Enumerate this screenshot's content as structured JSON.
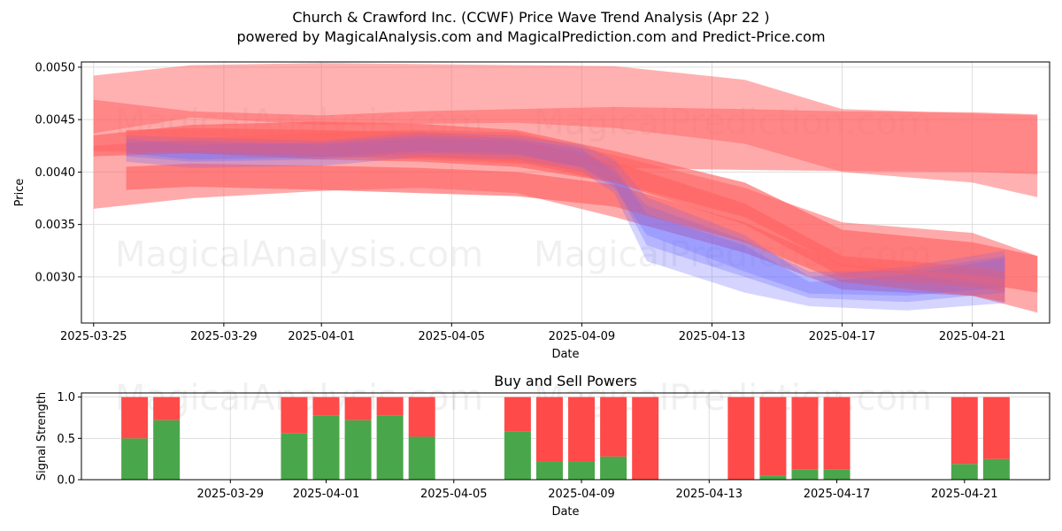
{
  "header": {
    "title": "Church & Crawford Inc. (CCWF) Price Wave Trend Analysis (Apr 22 )",
    "subtitle": "powered by MagicalAnalysis.com and MagicalPrediction.com and Predict-Price.com"
  },
  "watermarks": [
    "MagicalAnalysis.com",
    "MagicalPrediction.com"
  ],
  "colors": {
    "red_band": "#ff6464",
    "blue_band": "#6464ff",
    "buy": "#4aa64a",
    "sell": "#ff4a4a",
    "grid": "#dddddd"
  },
  "chart_data": [
    {
      "type": "area",
      "xlabel": "Date",
      "ylabel": "Price",
      "ylim": [
        0.00256,
        0.00505
      ],
      "xlim": [
        "2025-03-24T15:00",
        "2025-04-23T09:00"
      ],
      "y_ticks": [
        "0.0030",
        "0.0035",
        "0.0040",
        "0.0045",
        "0.0050"
      ],
      "x_ticks": [
        "2025-03-25",
        "2025-03-29",
        "2025-04-01",
        "2025-04-05",
        "2025-04-09",
        "2025-04-13",
        "2025-04-17",
        "2025-04-21"
      ],
      "grid": true,
      "red_bands": [
        {
          "x": [
            "2025-03-25",
            "2025-03-28",
            "2025-04-01",
            "2025-04-04",
            "2025-04-07",
            "2025-04-10",
            "2025-04-14",
            "2025-04-17",
            "2025-04-21",
            "2025-04-23"
          ],
          "upper": [
            0.00492,
            0.00502,
            0.00504,
            0.00503,
            0.00502,
            0.00501,
            0.00488,
            0.0046,
            0.00456,
            0.00454
          ],
          "lower": [
            0.00437,
            0.00452,
            0.00445,
            0.00446,
            0.00447,
            0.00442,
            0.00427,
            0.004,
            0.0039,
            0.00376
          ]
        },
        {
          "x": [
            "2025-03-25",
            "2025-03-28",
            "2025-04-01",
            "2025-04-04",
            "2025-04-07",
            "2025-04-10",
            "2025-04-14",
            "2025-04-17",
            "2025-04-21",
            "2025-04-23"
          ],
          "upper": [
            0.00469,
            0.00458,
            0.00454,
            0.00458,
            0.0046,
            0.00462,
            0.0046,
            0.00458,
            0.00457,
            0.00455
          ],
          "lower": [
            0.0042,
            0.00418,
            0.00415,
            0.00412,
            0.00408,
            0.00404,
            0.00402,
            0.00401,
            0.004,
            0.00398
          ]
        },
        {
          "x": [
            "2025-03-25",
            "2025-03-28",
            "2025-04-01",
            "2025-04-04",
            "2025-04-07",
            "2025-04-10",
            "2025-04-14",
            "2025-04-17",
            "2025-04-21",
            "2025-04-23"
          ],
          "upper": [
            0.00425,
            0.00432,
            0.00438,
            0.0044,
            0.00438,
            0.00416,
            0.00385,
            0.00352,
            0.00342,
            0.0032
          ],
          "lower": [
            0.00365,
            0.00375,
            0.00382,
            0.00385,
            0.0038,
            0.00357,
            0.00323,
            0.00288,
            0.00282,
            0.00266
          ]
        },
        {
          "x": [
            "2025-03-25",
            "2025-03-28",
            "2025-04-01",
            "2025-04-04",
            "2025-04-07",
            "2025-04-10",
            "2025-04-14",
            "2025-04-17",
            "2025-04-21",
            "2025-04-23"
          ],
          "upper": [
            0.00435,
            0.00445,
            0.00448,
            0.00446,
            0.0044,
            0.0042,
            0.0039,
            0.00345,
            0.00333,
            0.0032
          ],
          "lower": [
            0.00415,
            0.00418,
            0.00412,
            0.0041,
            0.00405,
            0.0039,
            0.00357,
            0.0031,
            0.00295,
            0.00285
          ]
        },
        {
          "x": [
            "2025-03-26",
            "2025-03-28",
            "2025-04-01",
            "2025-04-04",
            "2025-04-07",
            "2025-04-10",
            "2025-04-14",
            "2025-04-17",
            "2025-04-21",
            "2025-04-22"
          ],
          "upper": [
            0.00405,
            0.00408,
            0.00406,
            0.00404,
            0.004,
            0.00388,
            0.00352,
            0.00312,
            0.00302,
            0.00298
          ],
          "lower": [
            0.00383,
            0.00386,
            0.00383,
            0.0038,
            0.00377,
            0.00367,
            0.00333,
            0.00295,
            0.00282,
            0.00276
          ]
        },
        {
          "x": [
            "2025-03-26",
            "2025-03-28",
            "2025-04-01",
            "2025-04-04",
            "2025-04-07",
            "2025-04-10",
            "2025-04-14",
            "2025-04-17",
            "2025-04-21",
            "2025-04-22"
          ],
          "upper": [
            0.0044,
            0.00442,
            0.0044,
            0.00438,
            0.00432,
            0.0041,
            0.0037,
            0.0032,
            0.0031,
            0.00305
          ],
          "lower": [
            0.00418,
            0.0042,
            0.00416,
            0.00414,
            0.0041,
            0.0039,
            0.0035,
            0.003,
            0.0029,
            0.00286
          ]
        }
      ],
      "blue_bands": [
        {
          "x": [
            "2025-03-26",
            "2025-03-28",
            "2025-04-01",
            "2025-04-04",
            "2025-04-07",
            "2025-04-09",
            "2025-04-10",
            "2025-04-11",
            "2025-04-14",
            "2025-04-16",
            "2025-04-19",
            "2025-04-22"
          ],
          "upper": [
            0.00435,
            0.00433,
            0.0043,
            0.00438,
            0.00435,
            0.00426,
            0.00412,
            0.00376,
            0.0034,
            0.003,
            0.0031,
            0.00325
          ],
          "lower": [
            0.0041,
            0.00404,
            0.00406,
            0.00414,
            0.00412,
            0.004,
            0.0038,
            0.00315,
            0.00285,
            0.00272,
            0.00268,
            0.00275
          ]
        },
        {
          "x": [
            "2025-03-26",
            "2025-03-28",
            "2025-04-01",
            "2025-04-04",
            "2025-04-07",
            "2025-04-09",
            "2025-04-10",
            "2025-04-11",
            "2025-04-14",
            "2025-04-16",
            "2025-04-19",
            "2025-04-22"
          ],
          "upper": [
            0.00428,
            0.0043,
            0.00426,
            0.00432,
            0.0043,
            0.00418,
            0.00405,
            0.0036,
            0.0033,
            0.00295,
            0.00302,
            0.00318
          ],
          "lower": [
            0.00415,
            0.0041,
            0.00412,
            0.00418,
            0.00416,
            0.00405,
            0.00388,
            0.0033,
            0.003,
            0.0028,
            0.00276,
            0.00285
          ]
        },
        {
          "x": [
            "2025-03-26",
            "2025-03-28",
            "2025-04-01",
            "2025-04-04",
            "2025-04-07",
            "2025-04-09",
            "2025-04-10",
            "2025-04-11",
            "2025-04-14",
            "2025-04-16",
            "2025-04-19",
            "2025-04-22"
          ],
          "upper": [
            0.00432,
            0.00426,
            0.00428,
            0.00435,
            0.00432,
            0.00422,
            0.004,
            0.00368,
            0.00335,
            0.00305,
            0.00306,
            0.0032
          ],
          "lower": [
            0.00418,
            0.00412,
            0.00414,
            0.0042,
            0.00418,
            0.00404,
            0.00385,
            0.0034,
            0.00305,
            0.00284,
            0.00282,
            0.0029
          ]
        }
      ]
    },
    {
      "type": "bar",
      "title": "Buy and Sell Powers",
      "xlabel": "Date",
      "ylabel": "Signal Strength",
      "ylim": [
        0,
        1.05
      ],
      "y_ticks": [
        "0.0",
        "0.5",
        "1.0"
      ],
      "x_ticks": [
        "2025-03-29",
        "2025-04-01",
        "2025-04-05",
        "2025-04-09",
        "2025-04-13",
        "2025-04-17",
        "2025-04-21"
      ],
      "grid": true,
      "series": [
        {
          "name": "buy",
          "color": "#4aa64a",
          "x": [
            "2025-03-26",
            "2025-03-27",
            "2025-03-31",
            "2025-04-01",
            "2025-04-02",
            "2025-04-03",
            "2025-04-04",
            "2025-04-07",
            "2025-04-08",
            "2025-04-09",
            "2025-04-10",
            "2025-04-11",
            "2025-04-14",
            "2025-04-15",
            "2025-04-16",
            "2025-04-17",
            "2025-04-21",
            "2025-04-22"
          ],
          "values": [
            0.5,
            0.72,
            0.56,
            0.78,
            0.72,
            0.78,
            0.52,
            0.58,
            0.22,
            0.22,
            0.28,
            0.0,
            0.0,
            0.05,
            0.12,
            0.12,
            0.19,
            0.25
          ]
        },
        {
          "name": "sell",
          "color": "#ff4a4a",
          "x": [
            "2025-03-26",
            "2025-03-27",
            "2025-03-31",
            "2025-04-01",
            "2025-04-02",
            "2025-04-03",
            "2025-04-04",
            "2025-04-07",
            "2025-04-08",
            "2025-04-09",
            "2025-04-10",
            "2025-04-11",
            "2025-04-14",
            "2025-04-15",
            "2025-04-16",
            "2025-04-17",
            "2025-04-21",
            "2025-04-22"
          ],
          "values": [
            0.5,
            0.28,
            0.44,
            0.22,
            0.28,
            0.22,
            0.48,
            0.42,
            0.78,
            0.78,
            0.72,
            1.0,
            1.0,
            0.95,
            0.88,
            0.88,
            0.81,
            0.75
          ]
        }
      ]
    }
  ]
}
